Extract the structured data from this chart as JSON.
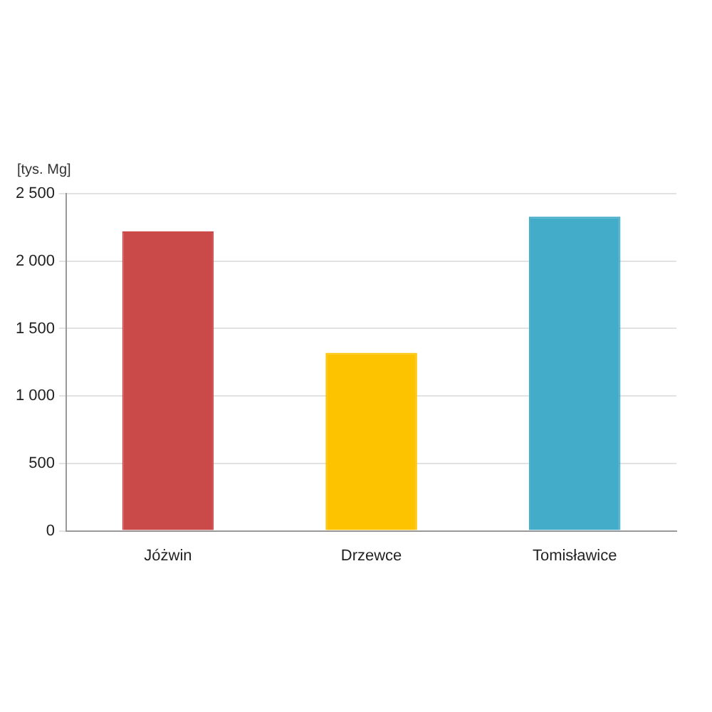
{
  "chart_data": {
    "type": "bar",
    "ylabel": "[tys. Mg]",
    "categories": [
      "Jóżwin",
      "Drzewce",
      "Tomisławice"
    ],
    "values": [
      2220,
      1320,
      2330
    ],
    "colors": [
      "#c94a48",
      "#fdc300",
      "#42acc9"
    ],
    "ylim": [
      0,
      2500
    ],
    "yticks": [
      0,
      500,
      {
        "value": 1000,
        "label": "1 000"
      },
      {
        "value": 1500,
        "label": "1 500"
      },
      {
        "value": 2000,
        "label": "2 000"
      },
      {
        "value": 2500,
        "label": "2 500"
      }
    ],
    "grid": "y",
    "legend": false
  }
}
